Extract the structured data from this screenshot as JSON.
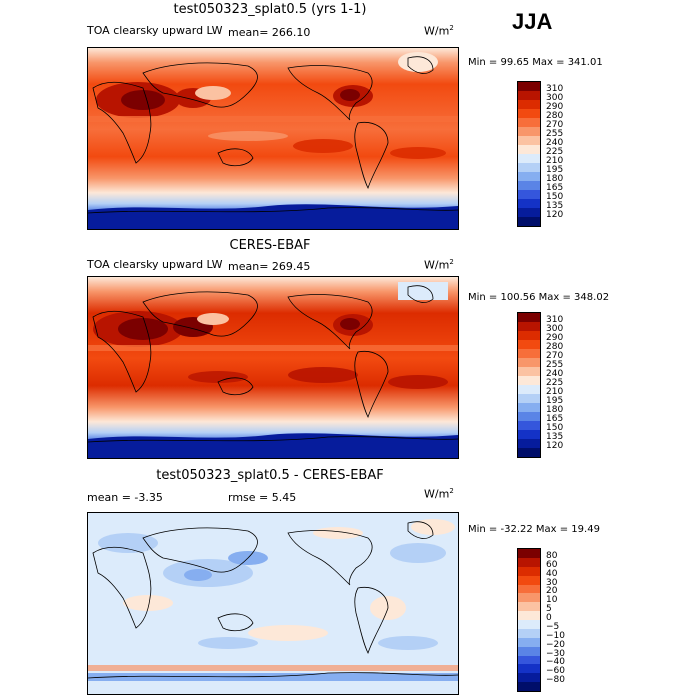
{
  "season": "JJA",
  "units_base": "W/m",
  "units_exp": "2",
  "panels": [
    {
      "title": "test050323_splat0.5 (yrs 1-1)",
      "field": "TOA clearsky upward LW",
      "mean_text": "mean= 266.10",
      "minmax_text": "Min =  99.65 Max = 341.01",
      "colorbar_labels": [
        "310",
        "300",
        "290",
        "280",
        "270",
        "255",
        "240",
        "225",
        "210",
        "195",
        "180",
        "165",
        "150",
        "135",
        "120"
      ],
      "colors": [
        "#7b0000",
        "#b81400",
        "#dc2c00",
        "#f24a10",
        "#f76e3a",
        "#f8966a",
        "#fbc2a2",
        "#fde8d8",
        "#dcebfb",
        "#b4d0f6",
        "#86aef0",
        "#5a84e6",
        "#3556dc",
        "#1432c6",
        "#061c9c",
        "#000e6a"
      ]
    },
    {
      "title": "CERES-EBAF",
      "field": "TOA clearsky upward LW",
      "mean_text": "mean= 269.45",
      "minmax_text": "Min = 100.56 Max = 348.02",
      "colorbar_labels": [
        "310",
        "300",
        "290",
        "280",
        "270",
        "255",
        "240",
        "225",
        "210",
        "195",
        "180",
        "165",
        "150",
        "135",
        "120"
      ],
      "colors": [
        "#7b0000",
        "#b81400",
        "#dc2c00",
        "#f24a10",
        "#f76e3a",
        "#f8966a",
        "#fbc2a2",
        "#fde8d8",
        "#dcebfb",
        "#b4d0f6",
        "#86aef0",
        "#5a84e6",
        "#3556dc",
        "#1432c6",
        "#061c9c",
        "#000e6a"
      ]
    },
    {
      "title": "test050323_splat0.5 - CERES-EBAF",
      "field": "",
      "mean_text": "mean =   -3.35",
      "rmse_text": "rmse =    5.45",
      "minmax_text": "Min = -32.22 Max =  19.49",
      "colorbar_labels": [
        "80",
        "60",
        "40",
        "30",
        "20",
        "10",
        "5",
        "0",
        "−5",
        "−10",
        "−20",
        "−30",
        "−40",
        "−60",
        "−80"
      ],
      "colors": [
        "#7b0000",
        "#b81400",
        "#dc2c00",
        "#f24a10",
        "#f76e3a",
        "#f8966a",
        "#fbc2a2",
        "#fde8d8",
        "#dcebfb",
        "#b4d0f6",
        "#86aef0",
        "#5a84e6",
        "#3556dc",
        "#1432c6",
        "#061c9c",
        "#000e6a"
      ]
    }
  ]
}
